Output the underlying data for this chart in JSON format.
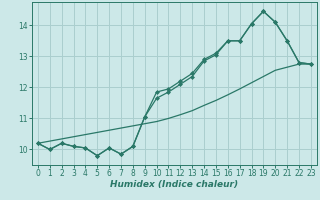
{
  "xlabel": "Humidex (Indice chaleur)",
  "bg_color": "#cce8e8",
  "grid_color": "#aacece",
  "line_color": "#2a7868",
  "xlim": [
    -0.5,
    23.5
  ],
  "ylim": [
    9.5,
    14.75
  ],
  "xticks": [
    0,
    1,
    2,
    3,
    4,
    5,
    6,
    7,
    8,
    9,
    10,
    11,
    12,
    13,
    14,
    15,
    16,
    17,
    18,
    19,
    20,
    21,
    22,
    23
  ],
  "yticks": [
    10,
    11,
    12,
    13,
    14
  ],
  "x_data": [
    0,
    1,
    2,
    3,
    4,
    5,
    6,
    7,
    8,
    9,
    10,
    11,
    12,
    13,
    14,
    15,
    16,
    17,
    18,
    19,
    20,
    21,
    22,
    23
  ],
  "line1_y": [
    10.2,
    10.0,
    10.2,
    10.1,
    10.05,
    9.8,
    10.05,
    9.85,
    10.1,
    11.05,
    11.85,
    11.95,
    12.2,
    12.45,
    12.9,
    13.1,
    13.5,
    13.5,
    14.05,
    14.45,
    14.1,
    13.5,
    12.8,
    12.75
  ],
  "line2_y": [
    10.2,
    10.0,
    10.2,
    10.1,
    10.05,
    9.8,
    10.05,
    9.85,
    10.1,
    11.05,
    11.65,
    11.85,
    12.1,
    12.35,
    12.85,
    13.05,
    13.5,
    13.5,
    14.05,
    14.45,
    14.1,
    13.5,
    12.8,
    12.75
  ],
  "line3_y": [
    10.2,
    10.27,
    10.34,
    10.41,
    10.48,
    10.55,
    10.62,
    10.69,
    10.76,
    10.83,
    10.9,
    11.0,
    11.12,
    11.25,
    11.42,
    11.58,
    11.76,
    11.95,
    12.15,
    12.35,
    12.55,
    12.65,
    12.75,
    12.75
  ]
}
